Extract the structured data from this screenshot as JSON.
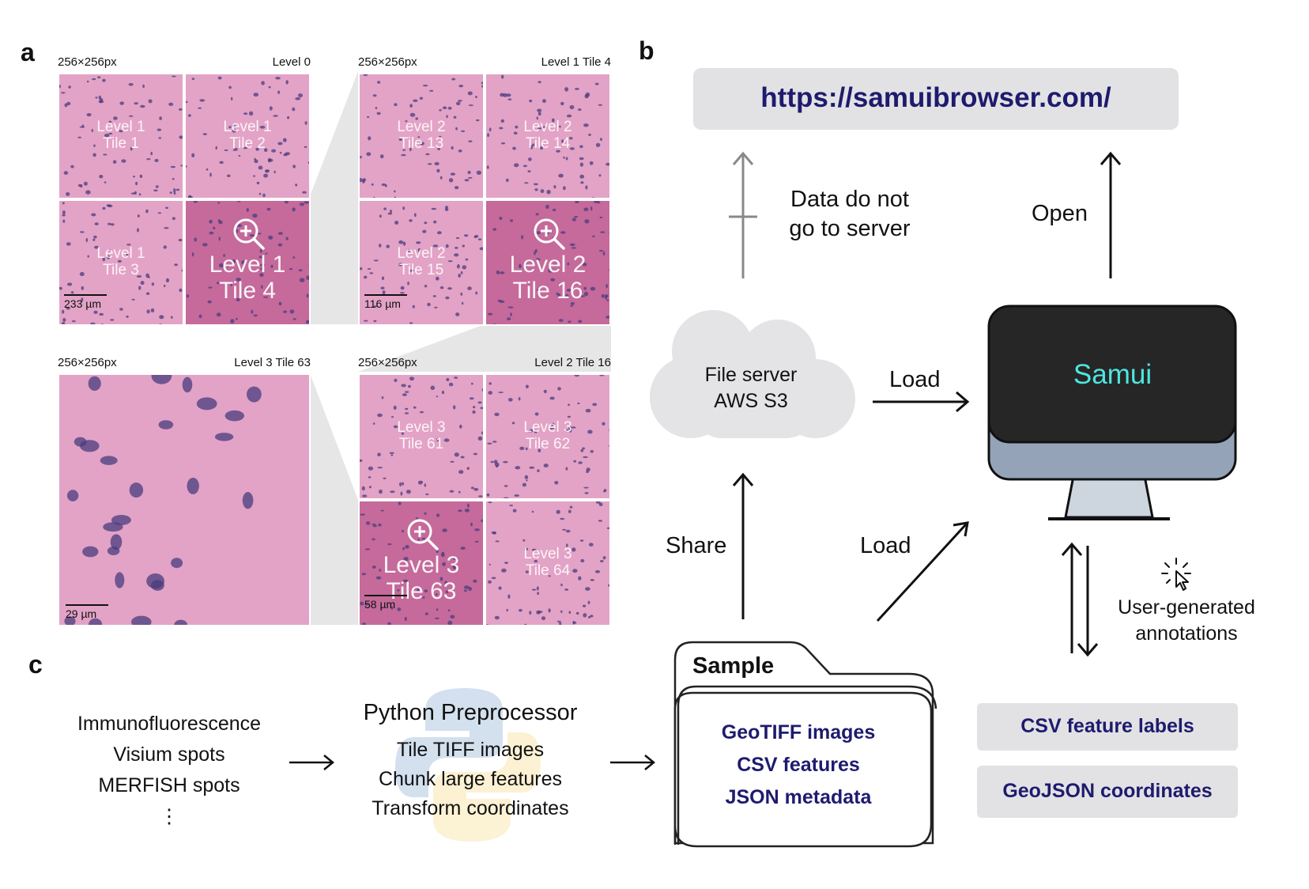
{
  "panels": {
    "a": "a",
    "b": "b",
    "c": "c"
  },
  "panel_a": {
    "groups": [
      {
        "size": "256×256px",
        "level": "Level 0",
        "tiles": [
          [
            "Level 1",
            "Tile 1"
          ],
          [
            "Level 1",
            "Tile 2"
          ],
          [
            "Level 1",
            "Tile 3"
          ]
        ],
        "zoom": [
          "Level 1",
          "Tile 4"
        ],
        "scale": "233 µm"
      },
      {
        "size": "256×256px",
        "level": "Level 1 Tile 4",
        "tiles": [
          [
            "Level 2",
            "Tile 13"
          ],
          [
            "Level 2",
            "Tile 14"
          ],
          [
            "Level 2",
            "Tile 15"
          ]
        ],
        "zoom": [
          "Level 2",
          "Tile 16"
        ],
        "scale": "116 µm"
      },
      {
        "size": "256×256px",
        "level": "Level 3 Tile 63",
        "scale": "29 µm"
      },
      {
        "size": "256×256px",
        "level": "Level 2 Tile 16",
        "tiles": [
          [
            "Level 3",
            "Tile 61"
          ],
          [
            "Level 3",
            "Tile 62"
          ],
          [
            "Level 3",
            "Tile 64"
          ]
        ],
        "zoom": [
          "Level 3",
          "Tile 63"
        ],
        "scale": "58 µm"
      }
    ]
  },
  "panel_b": {
    "url": "https://samuibrowser.com/",
    "data_note": [
      "Data do not",
      "go to server"
    ],
    "open": "Open",
    "file_server": [
      "File server",
      "AWS S3"
    ],
    "load_top": "Load",
    "samui": "Samui",
    "share": "Share",
    "load_diag": "Load",
    "user_annotations": [
      "User-generated",
      "annotations"
    ],
    "sample_title": "Sample",
    "sample_items": [
      "GeoTIFF images",
      "CSV features",
      "JSON metadata"
    ],
    "outputs": [
      "CSV feature labels",
      "GeoJSON coordinates"
    ]
  },
  "panel_c": {
    "inputs": [
      "Immunofluorescence",
      "Visium spots",
      "MERFISH spots",
      "⋮"
    ],
    "preprocessor_title": "Python Preprocessor",
    "preprocessor_steps": [
      "Tile TIFF images",
      "Chunk large features",
      "Transform coordinates"
    ]
  },
  "colors": {
    "tissue": "#e3a3c6",
    "tissue_dark": "#c56a9b",
    "nuclei": "#4a3c7e",
    "navy": "#1e1b6e",
    "samui_text": "#4ee6df",
    "screen": "#262626",
    "monitor_base": "#94a3b8",
    "stand": "#cdd5df",
    "grey_box": "#e2e2e4"
  }
}
